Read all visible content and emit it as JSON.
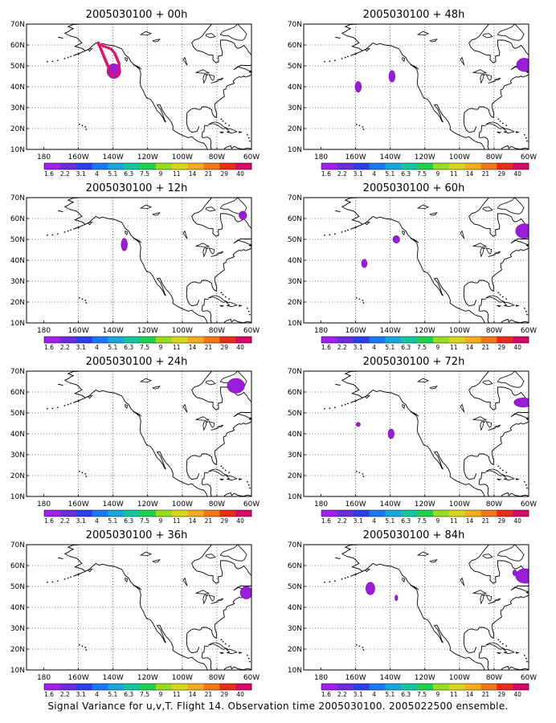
{
  "caption": "Signal Variance for u,v,T. Flight 14. Observation time 2005030100. 2005022500 ensemble.",
  "colors": {
    "feature": "#9a1cd8",
    "feature_edge": "#7a10b0",
    "obs_marker": "#e0106a",
    "coast": "#000000",
    "grid": "#000000"
  },
  "map": {
    "y_ticks": [
      "70N",
      "60N",
      "50N",
      "40N",
      "30N",
      "20N",
      "10N"
    ],
    "x_ticks": [
      "180",
      "160W",
      "140W",
      "120W",
      "100W",
      "80W",
      "60W"
    ],
    "lon_range": [
      -190,
      -60
    ],
    "lat_range": [
      10,
      70
    ],
    "grid_lines": "dotted every 20 deg lon, 10 deg lat",
    "colorbar_labels": [
      "1.6",
      "2.2",
      "3.1",
      "4",
      "5.1",
      "6.3",
      "7.5",
      "9",
      "11",
      "14",
      "21",
      "29",
      "40"
    ],
    "colorbar_colors": [
      "#a020f0",
      "#6a2ce0",
      "#2a3cf0",
      "#1a78f0",
      "#18a8d8",
      "#10c8a0",
      "#20d050",
      "#98dc1c",
      "#d8d818",
      "#f0b01c",
      "#f07818",
      "#f02818",
      "#d80868"
    ]
  },
  "panels": [
    {
      "title": "2005030100 + 00h",
      "features": [
        {
          "lon": -139.5,
          "lat": 47.5,
          "w": 4,
          "h": 3.5
        }
      ],
      "track": [
        [
          -148.5,
          61
        ],
        [
          -148,
          60
        ],
        [
          -147.5,
          59
        ],
        [
          -147,
          58
        ],
        [
          -146.5,
          57
        ],
        [
          -146,
          56
        ],
        [
          -145.5,
          55
        ],
        [
          -145,
          54
        ],
        [
          -144.5,
          53
        ],
        [
          -144,
          52
        ],
        [
          -143.5,
          51
        ],
        [
          -143,
          50
        ],
        [
          -142.5,
          49
        ],
        [
          -142,
          48
        ],
        [
          -141.5,
          47
        ],
        [
          -147,
          60
        ],
        [
          -145.5,
          59.5
        ],
        [
          -144,
          59
        ],
        [
          -142.5,
          58.5
        ],
        [
          -141,
          58
        ],
        [
          -140,
          57
        ],
        [
          -139,
          56
        ],
        [
          -138.5,
          55
        ],
        [
          -138,
          54
        ],
        [
          -137.5,
          53
        ],
        [
          -137,
          52
        ],
        [
          -136.5,
          51
        ],
        [
          -136.5,
          50
        ],
        [
          -136.5,
          49
        ],
        [
          -136.5,
          48
        ],
        [
          -136.5,
          47
        ],
        [
          -137,
          46
        ],
        [
          -138,
          45.3
        ],
        [
          -139.5,
          45
        ],
        [
          -141,
          45.3
        ],
        [
          -142,
          46
        ]
      ]
    },
    {
      "title": "2005030100 + 48h",
      "features": [
        {
          "lon": -158.5,
          "lat": 40,
          "w": 1.8,
          "h": 2.6
        },
        {
          "lon": -139,
          "lat": 45,
          "w": 1.8,
          "h": 2.8
        },
        {
          "lon": -62.5,
          "lat": 50.5,
          "w": 4.5,
          "h": 3.2
        }
      ],
      "track": []
    },
    {
      "title": "2005030100 + 12h",
      "features": [
        {
          "lon": -133.5,
          "lat": 47.5,
          "w": 1.8,
          "h": 3
        },
        {
          "lon": -65,
          "lat": 61.5,
          "w": 2.2,
          "h": 2
        }
      ],
      "track": []
    },
    {
      "title": "2005030100 + 60h",
      "features": [
        {
          "lon": -155,
          "lat": 38.5,
          "w": 1.6,
          "h": 2
        },
        {
          "lon": -136.5,
          "lat": 50,
          "w": 2,
          "h": 1.8
        },
        {
          "lon": -62.5,
          "lat": 54,
          "w": 5,
          "h": 3.5
        }
      ],
      "track": []
    },
    {
      "title": "2005030100 + 24h",
      "features": [
        {
          "lon": -69,
          "lat": 63,
          "w": 5,
          "h": 3.5
        }
      ],
      "track": []
    },
    {
      "title": "2005030100 + 72h",
      "features": [
        {
          "lon": -158.5,
          "lat": 44.5,
          "w": 1.2,
          "h": 1
        },
        {
          "lon": -139.5,
          "lat": 40,
          "w": 1.8,
          "h": 2.3
        },
        {
          "lon": -63,
          "lat": 55,
          "w": 5.5,
          "h": 2.2
        }
      ],
      "track": []
    },
    {
      "title": "2005030100 + 36h",
      "features": [
        {
          "lon": -63,
          "lat": 47,
          "w": 3.5,
          "h": 3
        }
      ],
      "track": []
    },
    {
      "title": "2005030100 + 84h",
      "features": [
        {
          "lon": -151.5,
          "lat": 49,
          "w": 2.6,
          "h": 3
        },
        {
          "lon": -136.5,
          "lat": 44.5,
          "w": 0.8,
          "h": 1.4
        },
        {
          "lon": -68,
          "lat": 56.5,
          "w": 1.2,
          "h": 1.4
        },
        {
          "lon": -62,
          "lat": 55,
          "w": 5.5,
          "h": 3.5
        }
      ],
      "track": []
    }
  ]
}
